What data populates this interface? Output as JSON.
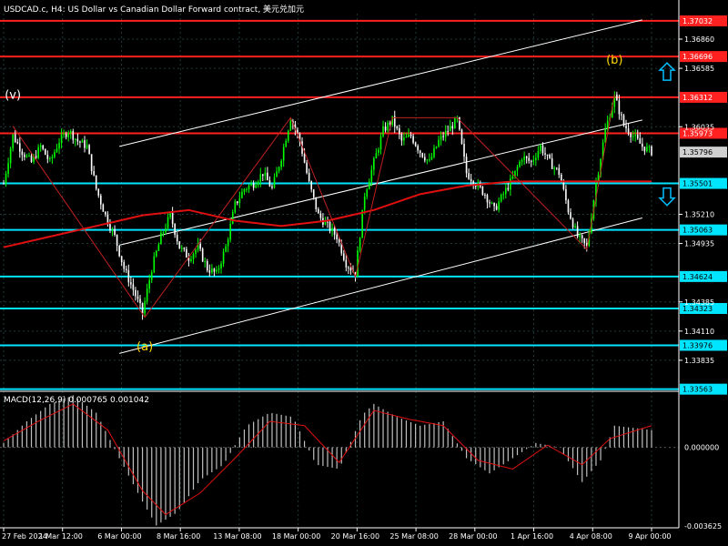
{
  "chart_data": [
    {
      "type": "candlestick",
      "title": "USDCAD.c, H4:  US Dollar vs Canadian Dollar Forward contract, 美元兑加元",
      "symbol": "USDCAD.c",
      "timeframe": "H4",
      "x_tick_labels": [
        "27 Feb 2024",
        "1 Mar 12:00",
        "6 Mar 00:00",
        "8 Mar 16:00",
        "13 Mar 08:00",
        "18 Mar 00:00",
        "20 Mar 16:00",
        "25 Mar 08:00",
        "28 Mar 00:00",
        "1 Apr 16:00",
        "4 Apr 08:00",
        "9 Apr 00:00"
      ],
      "y_range": [
        1.3356,
        1.371
      ],
      "y_tick_labels": [
        "1.36860",
        "1.36585",
        "1.36035",
        "1.35210",
        "1.34935",
        "1.34385",
        "1.34110",
        "1.33835"
      ],
      "current_price": "1.35796",
      "horizontal_levels": [
        {
          "value": 1.37032,
          "label": "1.37032",
          "color": "#ff2020"
        },
        {
          "value": 1.36696,
          "label": "1.36696",
          "color": "#ff2020"
        },
        {
          "value": 1.36312,
          "label": "1.36312",
          "color": "#ff2020"
        },
        {
          "value": 1.35973,
          "label": "1.35973",
          "color": "#ff2020"
        },
        {
          "value": 1.35501,
          "label": "1.35501",
          "color": "#00e5ff"
        },
        {
          "value": 1.35063,
          "label": "1.35063",
          "color": "#00e5ff"
        },
        {
          "value": 1.34624,
          "label": "1.34624",
          "color": "#00e5ff"
        },
        {
          "value": 1.34323,
          "label": "1.34323",
          "color": "#00e5ff"
        },
        {
          "value": 1.33976,
          "label": "1.33976",
          "color": "#00e5ff"
        },
        {
          "value": 1.33563,
          "label": "1.33563",
          "color": "#00e5ff"
        }
      ],
      "price_path": [
        [
          0,
          1.355
        ],
        [
          4,
          1.3595
        ],
        [
          8,
          1.358
        ],
        [
          12,
          1.357
        ],
        [
          16,
          1.3585
        ],
        [
          20,
          1.357
        ],
        [
          24,
          1.359
        ],
        [
          28,
          1.36
        ],
        [
          32,
          1.359
        ],
        [
          36,
          1.3585
        ],
        [
          40,
          1.3545
        ],
        [
          44,
          1.352
        ],
        [
          48,
          1.35
        ],
        [
          52,
          1.347
        ],
        [
          56,
          1.345
        ],
        [
          60,
          1.3428
        ],
        [
          64,
          1.347
        ],
        [
          68,
          1.35
        ],
        [
          72,
          1.352
        ],
        [
          76,
          1.349
        ],
        [
          80,
          1.348
        ],
        [
          84,
          1.349
        ],
        [
          88,
          1.347
        ],
        [
          92,
          1.3465
        ],
        [
          96,
          1.349
        ],
        [
          100,
          1.353
        ],
        [
          104,
          1.3545
        ],
        [
          108,
          1.355
        ],
        [
          112,
          1.356
        ],
        [
          116,
          1.3545
        ],
        [
          120,
          1.3575
        ],
        [
          124,
          1.3612
        ],
        [
          128,
          1.359
        ],
        [
          132,
          1.355
        ],
        [
          136,
          1.352
        ],
        [
          140,
          1.351
        ],
        [
          144,
          1.35
        ],
        [
          148,
          1.3475
        ],
        [
          152,
          1.3465
        ],
        [
          156,
          1.354
        ],
        [
          160,
          1.357
        ],
        [
          164,
          1.36
        ],
        [
          168,
          1.361
        ],
        [
          172,
          1.359
        ],
        [
          176,
          1.3595
        ],
        [
          180,
          1.358
        ],
        [
          184,
          1.357
        ],
        [
          188,
          1.359
        ],
        [
          192,
          1.36
        ],
        [
          196,
          1.361
        ],
        [
          200,
          1.356
        ],
        [
          204,
          1.355
        ],
        [
          208,
          1.354
        ],
        [
          212,
          1.3525
        ],
        [
          216,
          1.354
        ],
        [
          220,
          1.3555
        ],
        [
          224,
          1.3575
        ],
        [
          228,
          1.357
        ],
        [
          232,
          1.3585
        ],
        [
          236,
          1.357
        ],
        [
          240,
          1.356
        ],
        [
          244,
          1.3525
        ],
        [
          248,
          1.35
        ],
        [
          252,
          1.349
        ],
        [
          256,
          1.355
        ],
        [
          260,
          1.36
        ],
        [
          264,
          1.3632
        ],
        [
          268,
          1.3605
        ],
        [
          272,
          1.3595
        ],
        [
          276,
          1.3585
        ],
        [
          280,
          1.358
        ]
      ],
      "moving_average": [
        [
          0,
          1.349
        ],
        [
          20,
          1.35
        ],
        [
          40,
          1.351
        ],
        [
          60,
          1.352
        ],
        [
          80,
          1.3525
        ],
        [
          100,
          1.3515
        ],
        [
          120,
          1.351
        ],
        [
          140,
          1.3515
        ],
        [
          160,
          1.3525
        ],
        [
          180,
          1.354
        ],
        [
          200,
          1.3548
        ],
        [
          220,
          1.3552
        ],
        [
          240,
          1.3552
        ],
        [
          260,
          1.3552
        ],
        [
          280,
          1.3552
        ]
      ],
      "wave_labels": [
        {
          "text": "(v)",
          "bar": 4,
          "price": 1.363
        },
        {
          "text": "(a)",
          "bar": 61,
          "price": 1.3393
        },
        {
          "text": "(b)",
          "bar": 264,
          "price": 1.3663
        }
      ],
      "wave_path": [
        [
          4,
          1.3604
        ],
        [
          61,
          1.3424
        ],
        [
          124,
          1.3612
        ],
        [
          152,
          1.3462
        ],
        [
          168,
          1.3612
        ],
        [
          196,
          1.3612
        ],
        [
          252,
          1.3488
        ],
        [
          264,
          1.3634
        ]
      ],
      "channel_lines": [
        {
          "from": [
            50,
            1.3585
          ],
          "to": [
            236,
            1.3683
          ]
        },
        {
          "from": [
            50,
            1.3492
          ],
          "to": [
            236,
            1.3589
          ]
        },
        {
          "from": [
            50,
            1.339
          ],
          "to": [
            236,
            1.3495
          ]
        }
      ],
      "arrows": [
        {
          "direction": "up",
          "price": 1.3655,
          "color": "#00bfff"
        },
        {
          "direction": "down",
          "price": 1.3538,
          "color": "#00bfff"
        }
      ]
    },
    {
      "type": "bar",
      "title": "MACD(12,26,9) 0.000765 0.001042",
      "y_range": [
        -0.003625,
        0.0025
      ],
      "y_tick_labels": [
        "0.000000",
        "-0.003625"
      ],
      "histogram": [
        [
          0,
          0.0002
        ],
        [
          10,
          0.0012
        ],
        [
          20,
          0.002
        ],
        [
          30,
          0.0024
        ],
        [
          40,
          0.0016
        ],
        [
          50,
          -0.0005
        ],
        [
          60,
          -0.0025
        ],
        [
          66,
          -0.0036
        ],
        [
          75,
          -0.003
        ],
        [
          85,
          -0.0015
        ],
        [
          95,
          -0.0008
        ],
        [
          105,
          0.001
        ],
        [
          115,
          0.0016
        ],
        [
          125,
          0.0014
        ],
        [
          135,
          -0.0008
        ],
        [
          145,
          -0.001
        ],
        [
          155,
          0.0015
        ],
        [
          160,
          0.002
        ],
        [
          170,
          0.0014
        ],
        [
          180,
          0.001
        ],
        [
          190,
          0.0012
        ],
        [
          200,
          -0.0005
        ],
        [
          210,
          -0.0012
        ],
        [
          220,
          -0.0005
        ],
        [
          230,
          0.0002
        ],
        [
          240,
          0.0
        ],
        [
          250,
          -0.0016
        ],
        [
          258,
          -0.0006
        ],
        [
          264,
          0.001
        ],
        [
          272,
          0.0009
        ],
        [
          280,
          0.0008
        ]
      ],
      "signal": [
        [
          0,
          0.0003
        ],
        [
          15,
          0.0012
        ],
        [
          30,
          0.002
        ],
        [
          45,
          0.0008
        ],
        [
          60,
          -0.002
        ],
        [
          70,
          -0.0031
        ],
        [
          85,
          -0.0021
        ],
        [
          100,
          -0.0005
        ],
        [
          115,
          0.0012
        ],
        [
          130,
          0.001
        ],
        [
          145,
          -0.0007
        ],
        [
          160,
          0.0017
        ],
        [
          175,
          0.0013
        ],
        [
          190,
          0.001
        ],
        [
          205,
          -0.0006
        ],
        [
          220,
          -0.001
        ],
        [
          235,
          0.0001
        ],
        [
          250,
          -0.0008
        ],
        [
          262,
          0.0004
        ],
        [
          280,
          0.001
        ]
      ]
    }
  ],
  "style": {
    "background": "#000000",
    "grid": "#1f3a3a",
    "bull": "#00ff00",
    "bear": "#ffffff",
    "ma": "#e01010",
    "text": "#ffffff",
    "wave_label": "#ffd700",
    "wave_line": "#c02020",
    "channel": "#ffffff"
  }
}
